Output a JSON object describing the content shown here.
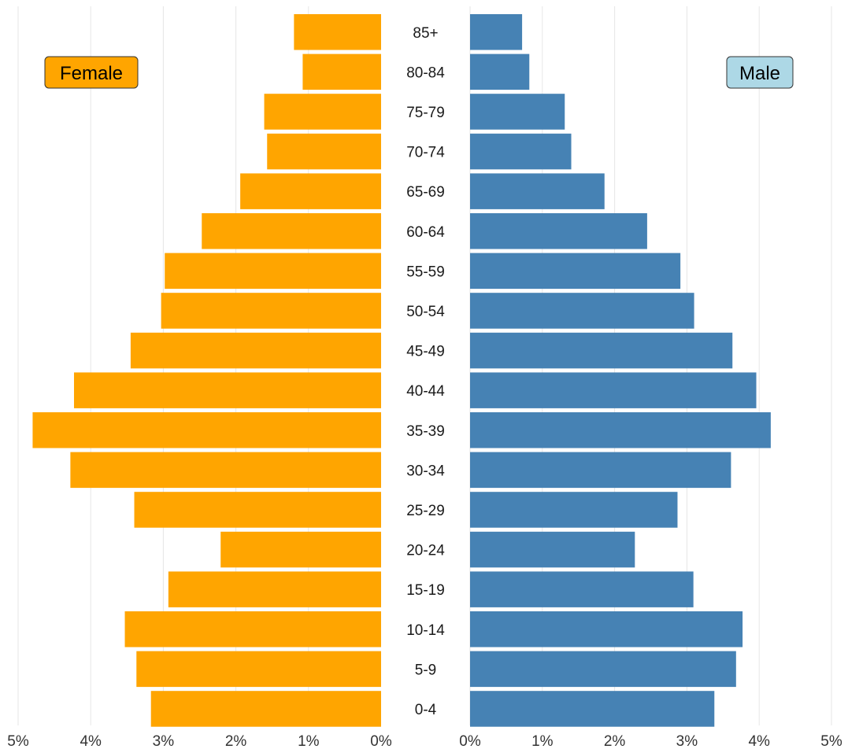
{
  "chart_data": {
    "type": "bar",
    "orientation": "horizontal",
    "layout": "population-pyramid",
    "categories": [
      "85+",
      "80-84",
      "75-79",
      "70-74",
      "65-69",
      "60-64",
      "55-59",
      "50-54",
      "45-49",
      "40-44",
      "35-39",
      "30-34",
      "25-29",
      "20-24",
      "15-19",
      "10-14",
      "5-9",
      "0-4"
    ],
    "series": [
      {
        "name": "Female",
        "side": "left",
        "color": "#FFA500",
        "values": [
          1.2,
          1.08,
          1.61,
          1.57,
          1.94,
          2.47,
          2.98,
          3.03,
          3.45,
          4.23,
          4.8,
          4.28,
          3.4,
          2.21,
          2.93,
          3.53,
          3.37,
          3.17
        ]
      },
      {
        "name": "Male",
        "side": "right",
        "color": "#4682B4",
        "values": [
          0.72,
          0.82,
          1.31,
          1.4,
          1.86,
          2.45,
          2.91,
          3.1,
          3.63,
          3.96,
          4.16,
          3.61,
          2.87,
          2.28,
          3.09,
          3.77,
          3.68,
          3.38
        ]
      }
    ],
    "x_ticks": [
      "5%",
      "4%",
      "3%",
      "2%",
      "1%",
      "0%",
      "0%",
      "1%",
      "2%",
      "3%",
      "4%",
      "5%"
    ],
    "xlim": [
      0,
      5
    ],
    "unit": "%",
    "grid": "vertical",
    "legend": [
      {
        "label": "Female",
        "color": "#FFA500",
        "position": "top-left"
      },
      {
        "label": "Male",
        "color": "#ADD8E6",
        "position": "top-right"
      }
    ],
    "title": "",
    "xlabel": "",
    "ylabel": ""
  }
}
